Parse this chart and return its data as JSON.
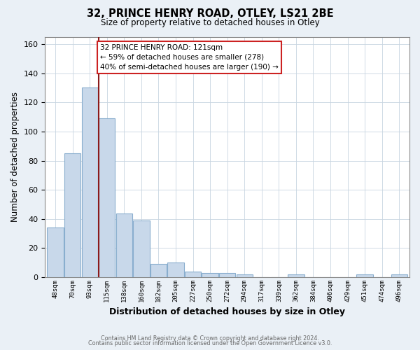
{
  "title_line1": "32, PRINCE HENRY ROAD, OTLEY, LS21 2BE",
  "title_line2": "Size of property relative to detached houses in Otley",
  "xlabel": "Distribution of detached houses by size in Otley",
  "ylabel": "Number of detached properties",
  "bar_values": [
    34,
    85,
    130,
    109,
    44,
    39,
    9,
    10,
    4,
    3,
    3,
    2,
    0,
    0,
    2,
    0,
    0,
    0,
    2,
    0,
    2
  ],
  "bar_labels": [
    "48sqm",
    "70sqm",
    "93sqm",
    "115sqm",
    "138sqm",
    "160sqm",
    "182sqm",
    "205sqm",
    "227sqm",
    "250sqm",
    "272sqm",
    "294sqm",
    "317sqm",
    "339sqm",
    "362sqm",
    "384sqm",
    "406sqm",
    "429sqm",
    "451sqm",
    "474sqm",
    "496sqm"
  ],
  "bar_color": "#c8d8ea",
  "bar_edge_color": "#89aece",
  "vline_color": "#8b1a1a",
  "ylim": [
    0,
    165
  ],
  "yticks": [
    0,
    20,
    40,
    60,
    80,
    100,
    120,
    140,
    160
  ],
  "annotation_text": "32 PRINCE HENRY ROAD: 121sqm\n← 59% of detached houses are smaller (278)\n40% of semi-detached houses are larger (190) →",
  "annotation_box_color": "#ffffff",
  "annotation_box_edge": "#cc2222",
  "footer_line1": "Contains HM Land Registry data © Crown copyright and database right 2024.",
  "footer_line2": "Contains public sector information licensed under the Open Government Licence v3.0.",
  "background_color": "#eaf0f6",
  "plot_bg_color": "#ffffff",
  "grid_color": "#c8d4e0"
}
